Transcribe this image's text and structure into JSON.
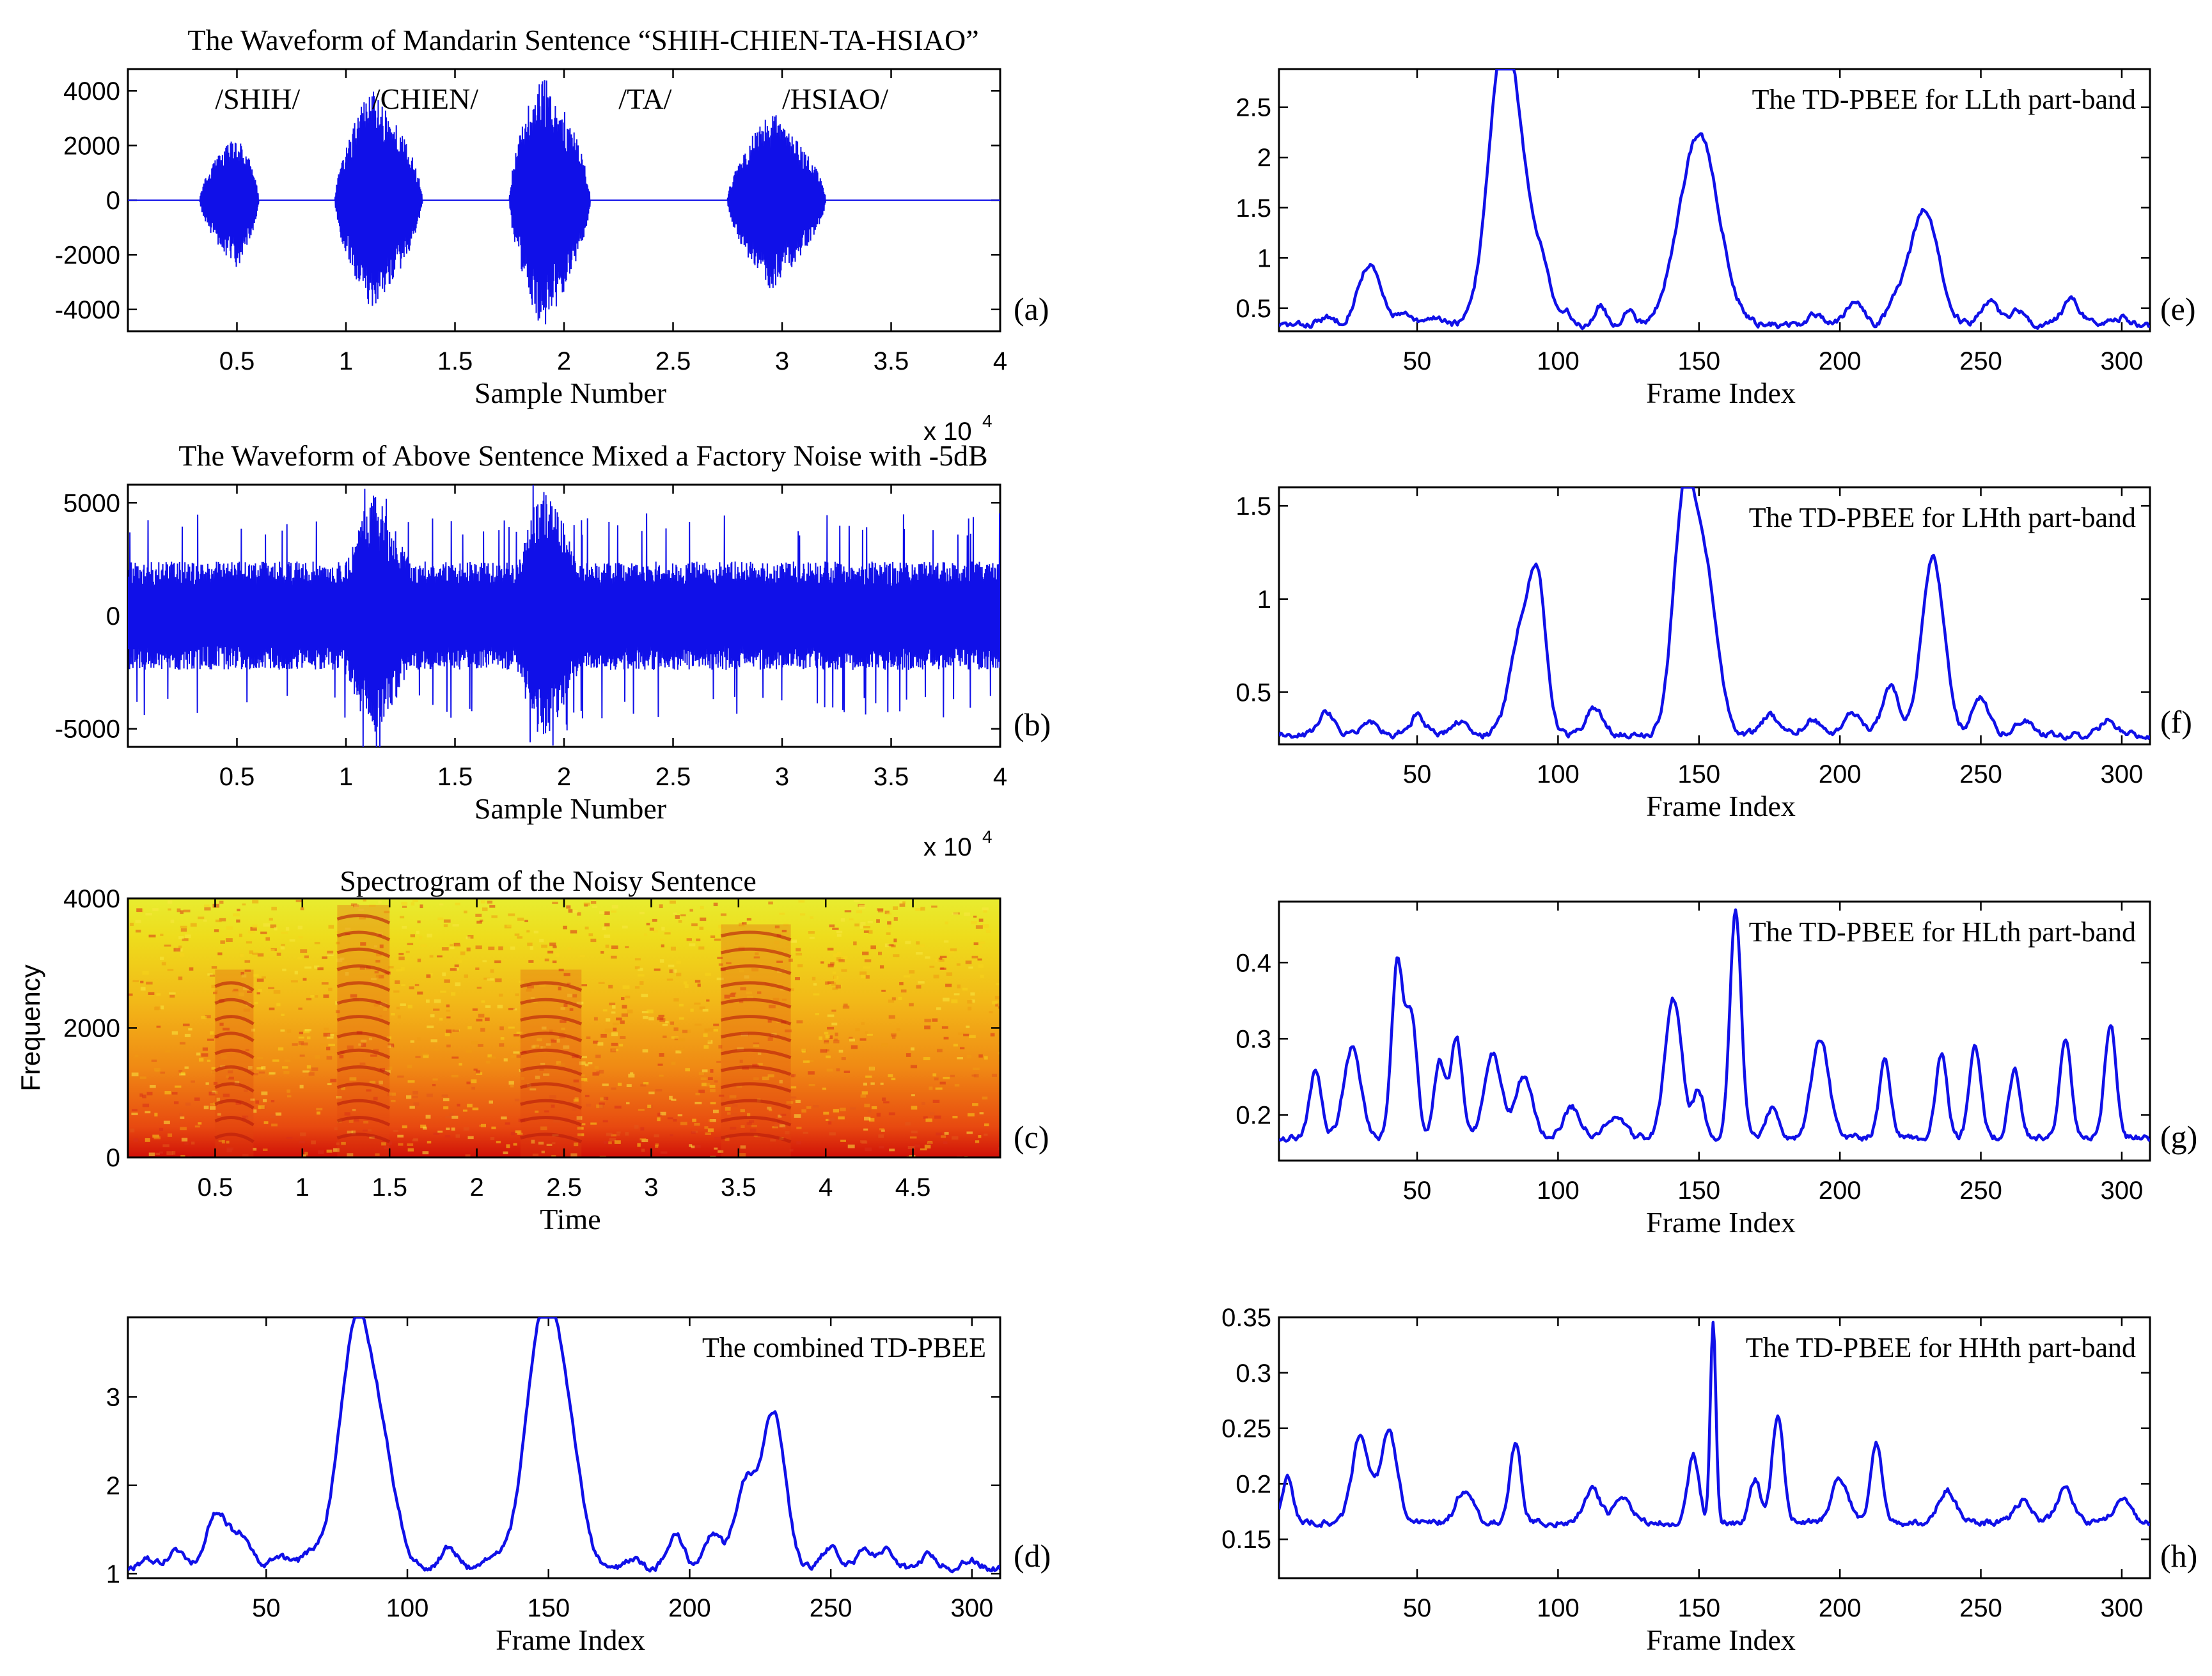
{
  "colors": {
    "trace": "#1010e8",
    "axis": "#000000",
    "background": "#ffffff"
  },
  "chart_data": [
    {
      "id": "a",
      "type": "line",
      "title": "The Waveform of Mandarin Sentence “SHIH-CHIEN-TA-HSIAO”",
      "xlabel": "Sample Number",
      "ylabel": "",
      "panel_label": "(a)",
      "xlim": [
        0,
        40000
      ],
      "ylim": [
        -4800,
        4800
      ],
      "xticks": [
        5000,
        10000,
        15000,
        20000,
        25000,
        30000,
        35000,
        40000
      ],
      "xtick_labels": [
        "0.5",
        "1",
        "1.5",
        "2",
        "2.5",
        "3",
        "3.5",
        "4"
      ],
      "yticks": [
        -4000,
        -2000,
        0,
        2000,
        4000
      ],
      "ytick_labels": [
        "-4000",
        "-2000",
        "0",
        "2000",
        "4000"
      ],
      "x_multiplier": "x 10",
      "x_multiplier_exp": "4",
      "syllables": [
        {
          "label": "/SHIH/",
          "x": 4000
        },
        {
          "label": "/CHIEN/",
          "x": 11200
        },
        {
          "label": "/TA/",
          "x": 22500
        },
        {
          "label": "/HSIAO/",
          "x": 30000
        }
      ],
      "envelope_segments": [
        {
          "start": 3300,
          "end": 6000,
          "peak": 2500,
          "peak_at": 5000
        },
        {
          "start": 9500,
          "end": 13500,
          "peak": 4200,
          "peak_at": 11200
        },
        {
          "start": 17500,
          "end": 21200,
          "peak": 4800,
          "peak_at": 19000
        },
        {
          "start": 27500,
          "end": 32000,
          "peak": 3300,
          "peak_at": 29500
        }
      ],
      "noise_floor": 0
    },
    {
      "id": "b",
      "type": "line",
      "title": "The Waveform of Above Sentence Mixed a Factory Noise with -5dB",
      "xlabel": "Sample Number",
      "ylabel": "",
      "panel_label": "(b)",
      "xlim": [
        0,
        40000
      ],
      "ylim": [
        -5800,
        5800
      ],
      "xticks": [
        5000,
        10000,
        15000,
        20000,
        25000,
        30000,
        35000,
        40000
      ],
      "xtick_labels": [
        "0.5",
        "1",
        "1.5",
        "2",
        "2.5",
        "3",
        "3.5",
        "4"
      ],
      "yticks": [
        -5000,
        0,
        5000
      ],
      "ytick_labels": [
        "-5000",
        "0",
        "5000"
      ],
      "x_multiplier": "x 10",
      "x_multiplier_exp": "4",
      "envelope_segments": [
        {
          "start": 9500,
          "end": 13500,
          "peak": 5500,
          "peak_at": 11200
        },
        {
          "start": 17500,
          "end": 21200,
          "peak": 5800,
          "peak_at": 19000
        }
      ],
      "noise_floor": 2400
    },
    {
      "id": "c",
      "type": "heatmap",
      "title": "Spectrogram of the Noisy Sentence",
      "xlabel": "Time",
      "ylabel": "Frequency",
      "panel_label": "(c)",
      "xlim": [
        0,
        5
      ],
      "ylim": [
        0,
        4000
      ],
      "xticks": [
        0.5,
        1,
        1.5,
        2,
        2.5,
        3,
        3.5,
        4,
        4.5
      ],
      "xtick_labels": [
        "0.5",
        "1",
        "1.5",
        "2",
        "2.5",
        "3",
        "3.5",
        "4",
        "4.5"
      ],
      "yticks": [
        0,
        2000,
        4000
      ],
      "ytick_labels": [
        "0",
        "2000",
        "4000"
      ],
      "speech_regions": [
        {
          "start": 0.5,
          "end": 0.72,
          "fmax": 2900
        },
        {
          "start": 1.2,
          "end": 1.5,
          "fmax": 3900
        },
        {
          "start": 2.25,
          "end": 2.6,
          "fmax": 2900
        },
        {
          "start": 3.4,
          "end": 3.8,
          "fmax": 3600
        }
      ]
    },
    {
      "id": "d",
      "type": "line",
      "title": "The combined TD-PBEE",
      "xlabel": "Frame Index",
      "ylabel": "",
      "panel_label": "(d)",
      "xlim": [
        1,
        310
      ],
      "ylim": [
        0.95,
        3.9
      ],
      "xticks": [
        50,
        100,
        150,
        200,
        250,
        300
      ],
      "xtick_labels": [
        "50",
        "100",
        "150",
        "200",
        "250",
        "300"
      ],
      "yticks": [
        1,
        2,
        3
      ],
      "ytick_labels": [
        "1",
        "2",
        "3"
      ],
      "baseline": 1.05,
      "peaks": [
        {
          "x": 8,
          "h": 0.1,
          "w": 3
        },
        {
          "x": 18,
          "h": 0.2,
          "w": 3
        },
        {
          "x": 33,
          "h": 0.65,
          "w": 4
        },
        {
          "x": 42,
          "h": 0.35,
          "w": 3
        },
        {
          "x": 55,
          "h": 0.15,
          "w": 3
        },
        {
          "x": 65,
          "h": 0.15,
          "w": 3
        },
        {
          "x": 82,
          "h": 2.75,
          "w": 6
        },
        {
          "x": 92,
          "h": 0.9,
          "w": 5
        },
        {
          "x": 115,
          "h": 0.25,
          "w": 3
        },
        {
          "x": 130,
          "h": 0.15,
          "w": 3
        },
        {
          "x": 148,
          "h": 2.8,
          "w": 6
        },
        {
          "x": 157,
          "h": 1.1,
          "w": 5
        },
        {
          "x": 180,
          "h": 0.1,
          "w": 3
        },
        {
          "x": 195,
          "h": 0.4,
          "w": 3
        },
        {
          "x": 208,
          "h": 0.4,
          "w": 3
        },
        {
          "x": 220,
          "h": 1.0,
          "w": 4
        },
        {
          "x": 230,
          "h": 1.75,
          "w": 4
        },
        {
          "x": 250,
          "h": 0.25,
          "w": 3
        },
        {
          "x": 262,
          "h": 0.2,
          "w": 3
        },
        {
          "x": 270,
          "h": 0.2,
          "w": 3
        },
        {
          "x": 285,
          "h": 0.15,
          "w": 3
        },
        {
          "x": 300,
          "h": 0.1,
          "w": 3
        }
      ]
    },
    {
      "id": "e",
      "type": "line",
      "title": "The TD-PBEE for LLth part-band",
      "xlabel": "Frame Index",
      "ylabel": "",
      "panel_label": "(e)",
      "xlim": [
        1,
        310
      ],
      "ylim": [
        0.27,
        2.88
      ],
      "xticks": [
        50,
        100,
        150,
        200,
        250,
        300
      ],
      "xtick_labels": [
        "50",
        "100",
        "150",
        "200",
        "250",
        "300"
      ],
      "yticks": [
        0.5,
        1,
        1.5,
        2,
        2.5
      ],
      "ytick_labels": [
        "0.5",
        "1",
        "1.5",
        "2",
        "2.5"
      ],
      "baseline": 0.33,
      "peaks": [
        {
          "x": 18,
          "h": 0.07,
          "w": 3
        },
        {
          "x": 33,
          "h": 0.6,
          "w": 4
        },
        {
          "x": 45,
          "h": 0.1,
          "w": 3
        },
        {
          "x": 57,
          "h": 0.08,
          "w": 3
        },
        {
          "x": 80,
          "h": 2.5,
          "w": 5
        },
        {
          "x": 87,
          "h": 1.0,
          "w": 5
        },
        {
          "x": 95,
          "h": 0.4,
          "w": 3
        },
        {
          "x": 103,
          "h": 0.12,
          "w": 2
        },
        {
          "x": 115,
          "h": 0.2,
          "w": 2
        },
        {
          "x": 125,
          "h": 0.15,
          "w": 2
        },
        {
          "x": 150,
          "h": 1.9,
          "w": 7
        },
        {
          "x": 192,
          "h": 0.1,
          "w": 3
        },
        {
          "x": 205,
          "h": 0.25,
          "w": 3
        },
        {
          "x": 220,
          "h": 0.2,
          "w": 3
        },
        {
          "x": 230,
          "h": 1.15,
          "w": 5
        },
        {
          "x": 253,
          "h": 0.25,
          "w": 3
        },
        {
          "x": 263,
          "h": 0.15,
          "w": 3
        },
        {
          "x": 282,
          "h": 0.25,
          "w": 3
        },
        {
          "x": 300,
          "h": 0.08,
          "w": 3
        }
      ]
    },
    {
      "id": "f",
      "type": "line",
      "title": "The TD-PBEE for LHth part-band",
      "xlabel": "Frame Index",
      "ylabel": "",
      "panel_label": "(f)",
      "xlim": [
        1,
        310
      ],
      "ylim": [
        0.22,
        1.6
      ],
      "xticks": [
        50,
        100,
        150,
        200,
        250,
        300
      ],
      "xtick_labels": [
        "50",
        "100",
        "150",
        "200",
        "250",
        "300"
      ],
      "yticks": [
        0.5,
        1,
        1.5
      ],
      "ytick_labels": [
        "0.5",
        "1",
        "1.5"
      ],
      "baseline": 0.27,
      "peaks": [
        {
          "x": 18,
          "h": 0.12,
          "w": 3
        },
        {
          "x": 33,
          "h": 0.08,
          "w": 3
        },
        {
          "x": 50,
          "h": 0.1,
          "w": 3
        },
        {
          "x": 65,
          "h": 0.08,
          "w": 3
        },
        {
          "x": 87,
          "h": 0.55,
          "w": 4
        },
        {
          "x": 93,
          "h": 0.7,
          "w": 3
        },
        {
          "x": 113,
          "h": 0.15,
          "w": 3
        },
        {
          "x": 145,
          "h": 1.3,
          "w": 4
        },
        {
          "x": 153,
          "h": 0.75,
          "w": 4
        },
        {
          "x": 175,
          "h": 0.1,
          "w": 3
        },
        {
          "x": 190,
          "h": 0.08,
          "w": 3
        },
        {
          "x": 205,
          "h": 0.12,
          "w": 3
        },
        {
          "x": 218,
          "h": 0.25,
          "w": 3
        },
        {
          "x": 233,
          "h": 0.95,
          "w": 4
        },
        {
          "x": 250,
          "h": 0.2,
          "w": 3
        },
        {
          "x": 265,
          "h": 0.08,
          "w": 3
        },
        {
          "x": 295,
          "h": 0.08,
          "w": 3
        }
      ]
    },
    {
      "id": "g",
      "type": "line",
      "title": "The TD-PBEE for HLth part-band",
      "xlabel": "Frame Index",
      "ylabel": "",
      "panel_label": "(g)",
      "xlim": [
        1,
        310
      ],
      "ylim": [
        0.14,
        0.48
      ],
      "xticks": [
        50,
        100,
        150,
        200,
        250,
        300
      ],
      "xtick_labels": [
        "50",
        "100",
        "150",
        "200",
        "250",
        "300"
      ],
      "yticks": [
        0.2,
        0.3,
        0.4
      ],
      "ytick_labels": [
        "0.2",
        "0.3",
        "0.4"
      ],
      "baseline": 0.17,
      "peaks": [
        {
          "x": 14,
          "h": 0.09,
          "w": 2
        },
        {
          "x": 27,
          "h": 0.12,
          "w": 3
        },
        {
          "x": 43,
          "h": 0.23,
          "w": 2
        },
        {
          "x": 48,
          "h": 0.16,
          "w": 2
        },
        {
          "x": 58,
          "h": 0.1,
          "w": 2
        },
        {
          "x": 64,
          "h": 0.13,
          "w": 2
        },
        {
          "x": 77,
          "h": 0.11,
          "w": 3
        },
        {
          "x": 88,
          "h": 0.08,
          "w": 3
        },
        {
          "x": 105,
          "h": 0.04,
          "w": 3
        },
        {
          "x": 120,
          "h": 0.03,
          "w": 3
        },
        {
          "x": 141,
          "h": 0.18,
          "w": 3
        },
        {
          "x": 150,
          "h": 0.06,
          "w": 2
        },
        {
          "x": 163,
          "h": 0.3,
          "w": 2
        },
        {
          "x": 176,
          "h": 0.04,
          "w": 2
        },
        {
          "x": 193,
          "h": 0.13,
          "w": 3
        },
        {
          "x": 216,
          "h": 0.1,
          "w": 2
        },
        {
          "x": 236,
          "h": 0.11,
          "w": 2
        },
        {
          "x": 248,
          "h": 0.12,
          "w": 2
        },
        {
          "x": 262,
          "h": 0.09,
          "w": 2
        },
        {
          "x": 280,
          "h": 0.13,
          "w": 2
        },
        {
          "x": 296,
          "h": 0.15,
          "w": 2
        }
      ]
    },
    {
      "id": "h",
      "type": "line",
      "title": "The TD-PBEE for HHth part-band",
      "xlabel": "Frame Index",
      "ylabel": "",
      "panel_label": "(h)",
      "xlim": [
        1,
        310
      ],
      "ylim": [
        0.115,
        0.35
      ],
      "xticks": [
        50,
        100,
        150,
        200,
        250,
        300
      ],
      "xtick_labels": [
        "50",
        "100",
        "150",
        "200",
        "250",
        "300"
      ],
      "yticks": [
        0.15,
        0.2,
        0.25,
        0.3,
        0.35
      ],
      "ytick_labels": [
        "0.15",
        "0.2",
        "0.25",
        "0.3",
        "0.35"
      ],
      "baseline": 0.165,
      "peaks": [
        {
          "x": 4,
          "h": 0.04,
          "w": 2
        },
        {
          "x": 30,
          "h": 0.08,
          "w": 3
        },
        {
          "x": 40,
          "h": 0.08,
          "w": 3
        },
        {
          "x": 67,
          "h": 0.03,
          "w": 3
        },
        {
          "x": 85,
          "h": 0.07,
          "w": 2
        },
        {
          "x": 112,
          "h": 0.03,
          "w": 3
        },
        {
          "x": 123,
          "h": 0.02,
          "w": 3
        },
        {
          "x": 148,
          "h": 0.06,
          "w": 2
        },
        {
          "x": 155,
          "h": 0.18,
          "w": 1
        },
        {
          "x": 170,
          "h": 0.04,
          "w": 2
        },
        {
          "x": 178,
          "h": 0.1,
          "w": 2
        },
        {
          "x": 200,
          "h": 0.04,
          "w": 3
        },
        {
          "x": 213,
          "h": 0.07,
          "w": 2
        },
        {
          "x": 238,
          "h": 0.03,
          "w": 3
        },
        {
          "x": 265,
          "h": 0.02,
          "w": 3
        },
        {
          "x": 280,
          "h": 0.03,
          "w": 3
        },
        {
          "x": 300,
          "h": 0.02,
          "w": 3
        }
      ]
    }
  ]
}
